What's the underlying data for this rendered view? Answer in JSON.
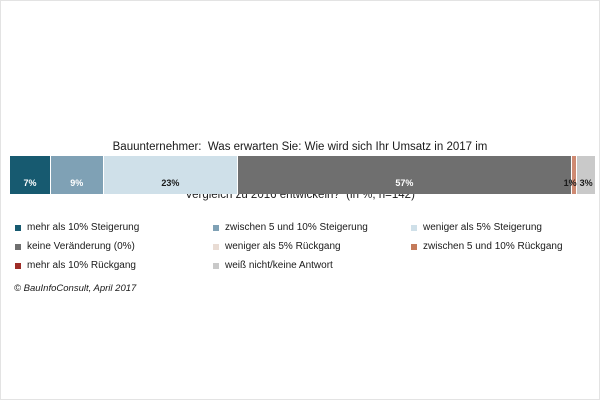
{
  "title": {
    "line1": "Bauunternehmer:  Was erwarten Sie: Wie wird sich Ihr Umsatz in 2017 im",
    "line2": "Vergleich zu 2016 entwickeln?  (in %, n=142)"
  },
  "chart_data": {
    "type": "bar",
    "subtype": "horizontal-stacked-100pct",
    "title": "Bauunternehmer: Was erwarten Sie: Wie wird sich Ihr Umsatz in 2017 im Vergleich zu 2016 entwickeln? (in %, n=142)",
    "unit": "%",
    "sample_size_label": "n=142",
    "xlim": [
      0,
      100
    ],
    "segments": [
      {
        "label": "mehr als 10% Steigerung",
        "value": 7,
        "display": "7%",
        "color": "#175a70",
        "text_color": "#ffffff"
      },
      {
        "label": "zwischen 5 und 10% Steigerung",
        "value": 9,
        "display": "9%",
        "color": "#7fa1b5",
        "text_color": "#ffffff"
      },
      {
        "label": "weniger als 5% Steigerung",
        "value": 23,
        "display": "23%",
        "color": "#cfe0e9",
        "text_color": "#1a1a1a"
      },
      {
        "label": "keine Veränderung (0%)",
        "value": 57,
        "display": "57%",
        "color": "#6f6f6f",
        "text_color": "#ffffff"
      },
      {
        "label": "zwischen 5 und 10% Rückgang",
        "value": 1,
        "display": "1%",
        "color": "#cf8a72",
        "text_color": "#1a1a1a"
      },
      {
        "label": "weiß nicht/keine Antwort",
        "value": 3,
        "display": "3%",
        "color": "#c9c9c9",
        "text_color": "#1a1a1a"
      }
    ]
  },
  "legend": {
    "columns": [
      [
        {
          "label": "mehr als 10% Steigerung",
          "color": "#175a70"
        },
        {
          "label": "keine Veränderung (0%)",
          "color": "#6f6f6f"
        },
        {
          "label": "mehr als 10% Rückgang",
          "color": "#9e2d28"
        }
      ],
      [
        {
          "label": "zwischen 5 und 10% Steigerung",
          "color": "#7fa1b5"
        },
        {
          "label": "weniger als 5% Rückgang",
          "color": "#e9dcd4"
        },
        {
          "label": "weiß nicht/keine Antwort",
          "color": "#c9c9c9"
        }
      ],
      [
        {
          "label": "weniger als 5% Steigerung",
          "color": "#cfe0e9"
        },
        {
          "label": "zwischen 5 und 10% Rückgang",
          "color": "#c47a5a"
        }
      ]
    ]
  },
  "footer": {
    "credit": "© BauInfoConsult, April 2017"
  }
}
